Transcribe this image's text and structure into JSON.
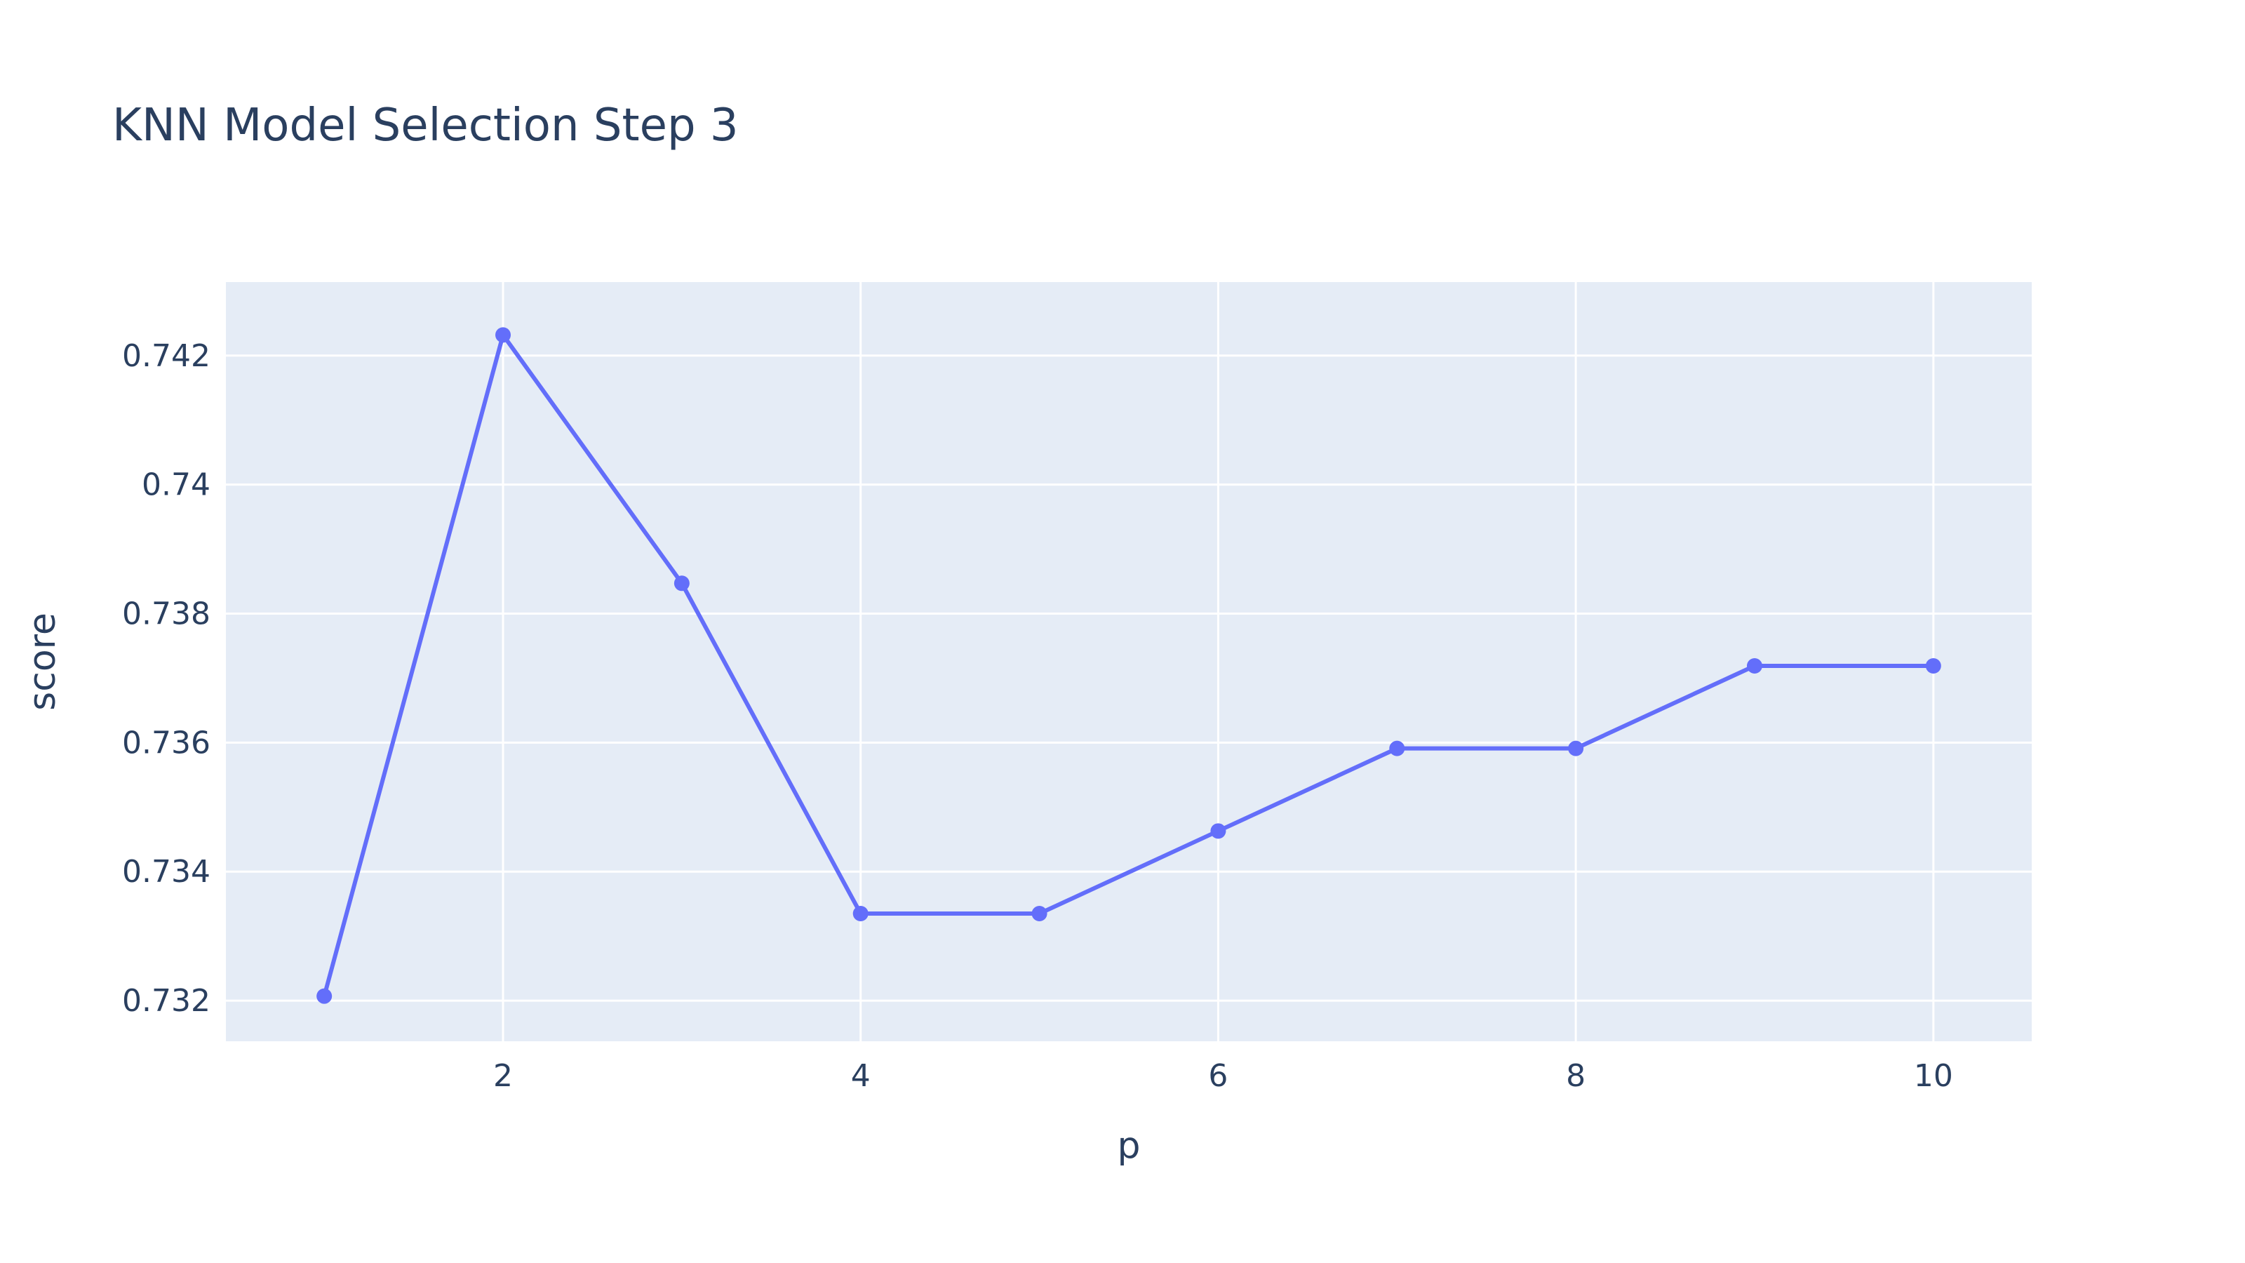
{
  "chart_data": {
    "type": "line",
    "title": "KNN Model Selection Step 3",
    "xlabel": "p",
    "ylabel": "score",
    "xlim": [
      0.45,
      10.55
    ],
    "ylim": [
      0.73137,
      0.74314
    ],
    "x_ticks": [
      2,
      4,
      6,
      8,
      10
    ],
    "y_ticks": [
      0.732,
      0.734,
      0.736,
      0.738,
      0.74,
      0.742
    ],
    "y_tick_labels": [
      "0.732",
      "0.734",
      "0.736",
      "0.738",
      "0.74",
      "0.742"
    ],
    "grid": true,
    "legend": "none",
    "colors": {
      "line": "#636efa",
      "plot_bg": "#e5ecf6",
      "grid": "#ffffff",
      "text": "#2a3f5f"
    },
    "series": [
      {
        "x": [
          1,
          2,
          3,
          4,
          5,
          6,
          7,
          8,
          9,
          10
        ],
        "values": [
          0.73207,
          0.74232,
          0.73847,
          0.73335,
          0.73335,
          0.73463,
          0.73591,
          0.73591,
          0.73719,
          0.73719
        ]
      }
    ]
  }
}
